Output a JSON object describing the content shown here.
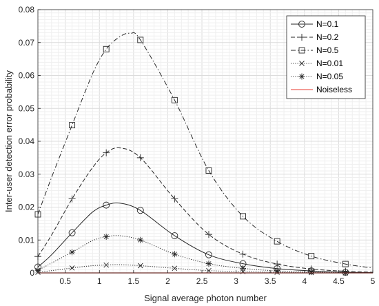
{
  "chart_data": {
    "type": "line",
    "xlabel": "Signal average photon number",
    "ylabel": "Inter-user detection error probability",
    "xlim": [
      0.1,
      5
    ],
    "ylim": [
      0,
      0.08
    ],
    "xticks": [
      0.5,
      1,
      1.5,
      2,
      2.5,
      3,
      3.5,
      4,
      4.5,
      5
    ],
    "xtick_labels": [
      "0.5",
      "1",
      "1.5",
      "2",
      "2.5",
      "3",
      "3.5",
      "4",
      "4.5",
      "5"
    ],
    "yticks": [
      0,
      0.01,
      0.02,
      0.03,
      0.04,
      0.05,
      0.06,
      0.07,
      0.08
    ],
    "ytick_labels": [
      "0",
      "0.01",
      "0.02",
      "0.03",
      "0.04",
      "0.05",
      "0.06",
      "0.07",
      "0.08"
    ],
    "grid": true,
    "legend_position": "top-right",
    "series": [
      {
        "name": "N=0.1",
        "style": "solid",
        "marker": "circle",
        "x": [
          0.1,
          0.3,
          0.6,
          0.9,
          1.1,
          1.3,
          1.6,
          2.1,
          2.6,
          3.1,
          3.6,
          4.1,
          4.6,
          5.0
        ],
        "y": [
          0.0018,
          0.0055,
          0.0122,
          0.0185,
          0.0206,
          0.0212,
          0.019,
          0.0113,
          0.0055,
          0.0028,
          0.0013,
          0.0006,
          0.0002,
          0.0001
        ],
        "marker_x": [
          0.1,
          0.6,
          1.1,
          1.6,
          2.1,
          2.6,
          3.1,
          3.6,
          4.1,
          4.6
        ]
      },
      {
        "name": "N=0.2",
        "style": "dashed",
        "marker": "plus",
        "x": [
          0.1,
          0.3,
          0.6,
          0.9,
          1.1,
          1.3,
          1.6,
          2.1,
          2.6,
          3.1,
          3.6,
          4.1,
          4.6,
          5.0
        ],
        "y": [
          0.005,
          0.0115,
          0.0225,
          0.032,
          0.0365,
          0.038,
          0.035,
          0.0225,
          0.0117,
          0.0057,
          0.0027,
          0.0012,
          0.0005,
          0.0002
        ],
        "marker_x": [
          0.1,
          0.6,
          1.1,
          1.6,
          2.1,
          2.6,
          3.1,
          3.6,
          4.1,
          4.6
        ]
      },
      {
        "name": "N=0.5",
        "style": "dashdot",
        "marker": "square",
        "x": [
          0.1,
          0.3,
          0.6,
          0.9,
          1.1,
          1.3,
          1.45,
          1.6,
          2.1,
          2.6,
          3.1,
          3.6,
          4.1,
          4.6,
          5.0
        ],
        "y": [
          0.0178,
          0.029,
          0.0449,
          0.0605,
          0.068,
          0.0718,
          0.0728,
          0.0708,
          0.0525,
          0.0311,
          0.0172,
          0.0096,
          0.0051,
          0.0027,
          0.0015
        ],
        "marker_x": [
          0.1,
          0.6,
          1.1,
          1.6,
          2.1,
          2.6,
          3.1,
          3.6,
          4.1,
          4.6
        ]
      },
      {
        "name": "N=0.01",
        "style": "dotted",
        "marker": "x",
        "x": [
          0.1,
          0.3,
          0.6,
          0.9,
          1.1,
          1.3,
          1.6,
          2.1,
          2.6,
          3.1,
          3.6,
          4.1,
          4.6,
          5.0
        ],
        "y": [
          0.0002,
          0.0007,
          0.0015,
          0.0022,
          0.0024,
          0.0025,
          0.0022,
          0.0014,
          0.0007,
          0.0004,
          0.0002,
          0.0001,
          0.0,
          0.0
        ],
        "marker_x": [
          0.1,
          0.6,
          1.1,
          1.6,
          2.1,
          2.6,
          3.1,
          3.6,
          4.1,
          4.6
        ]
      },
      {
        "name": "N=0.05",
        "style": "dotted",
        "marker": "asterisk",
        "x": [
          0.1,
          0.3,
          0.6,
          0.9,
          1.1,
          1.3,
          1.6,
          2.1,
          2.6,
          3.1,
          3.6,
          4.1,
          4.6,
          5.0
        ],
        "y": [
          0.0008,
          0.003,
          0.0063,
          0.0098,
          0.011,
          0.0113,
          0.01,
          0.0057,
          0.0028,
          0.0014,
          0.0006,
          0.0003,
          0.0001,
          0.0
        ],
        "marker_x": [
          0.1,
          0.6,
          1.1,
          1.6,
          2.1,
          2.6,
          3.1,
          3.6,
          4.1,
          4.6
        ]
      },
      {
        "name": "Noiseless",
        "style": "solid",
        "marker": "none",
        "color": "#e8392f",
        "x": [
          0.1,
          5.0
        ],
        "y": [
          0,
          0
        ]
      }
    ]
  }
}
